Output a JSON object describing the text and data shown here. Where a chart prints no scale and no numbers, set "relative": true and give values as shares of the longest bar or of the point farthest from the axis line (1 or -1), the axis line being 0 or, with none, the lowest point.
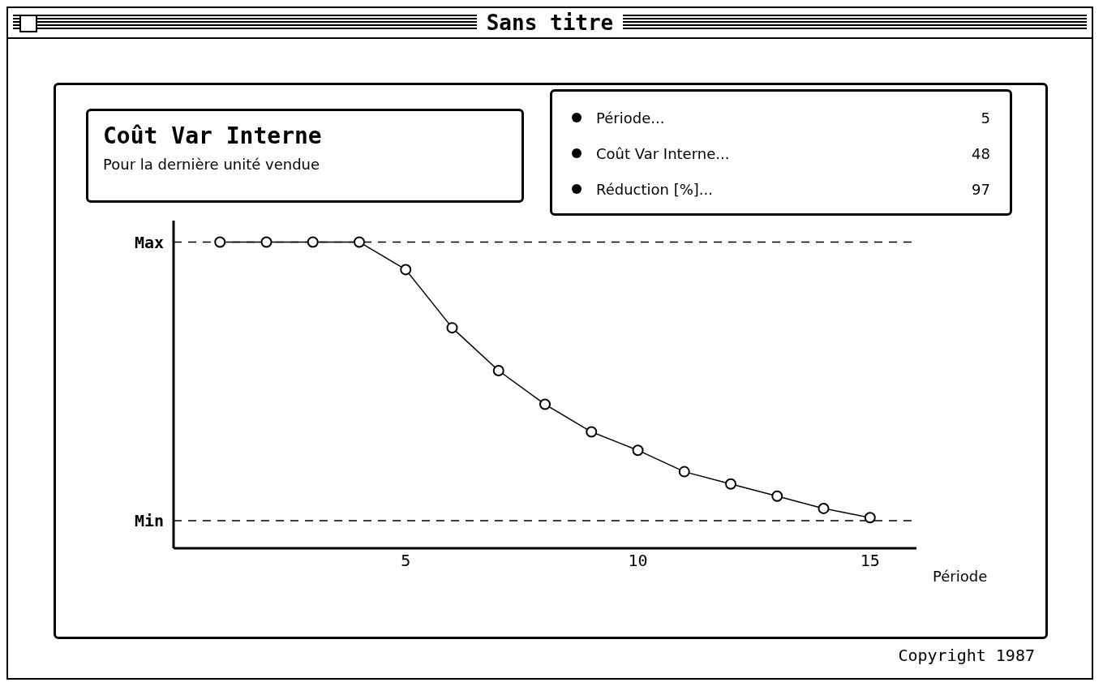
{
  "chart_data": {
    "type": "line",
    "title": "Coût Var Interne",
    "subtitle": "Pour la dernière unité vendue",
    "xlabel": "Période",
    "annotations": [
      "Sans titre",
      "Période...",
      "5",
      "Coût Var Interne...",
      "48",
      "Réduction [%]...",
      "97",
      "Copyright 1987"
    ],
    "x": [
      1,
      2,
      3,
      4,
      5,
      6,
      7,
      8,
      9,
      10,
      11,
      12,
      13,
      14,
      15
    ],
    "series": [
      {
        "color": "#000000",
        "values": [
          1,
          1,
          1,
          1,
          0.91,
          0.72,
          0.58,
          0.47,
          0.38,
          0.32,
          0.25,
          0.21,
          0.17,
          0.13,
          0.1
        ]
      }
    ],
    "relative": true,
    "xlim": [
      0,
      16
    ],
    "xticks": [
      5,
      10,
      15
    ],
    "ref_lines": [
      {
        "axis": "y",
        "value": 1,
        "label": "Max",
        "line_style": "dashed"
      },
      {
        "axis": "y",
        "value": 0.09,
        "label": "Min",
        "line_style": "dashed"
      }
    ],
    "marker": "circle",
    "line_style": "solid",
    "grid": false,
    "legend": false
  }
}
